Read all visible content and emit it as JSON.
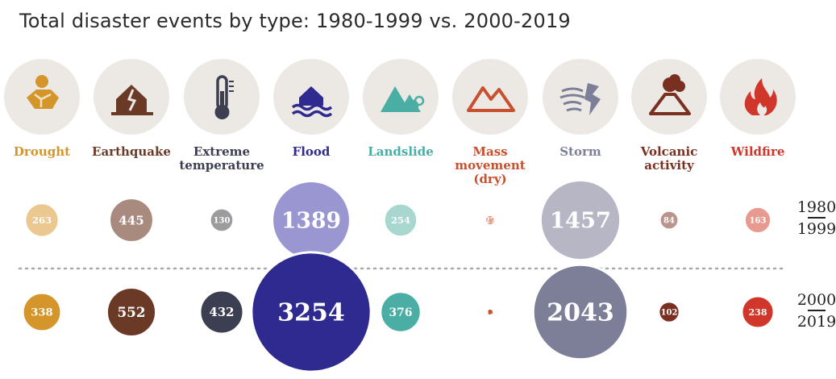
{
  "title": "Total disaster events by type: 1980-1999 vs. 2000-2019",
  "periods": {
    "p1": {
      "top": "1980",
      "bottom": "1999"
    },
    "p2": {
      "top": "2000",
      "bottom": "2019"
    }
  },
  "categories": [
    {
      "key": "drought",
      "label": [
        "Drought"
      ],
      "color": "#d4952a",
      "icon": "drought-icon"
    },
    {
      "key": "earthquake",
      "label": [
        "Earthquake"
      ],
      "color": "#6b3a26",
      "icon": "earthquake-icon"
    },
    {
      "key": "extreme",
      "label": [
        "Extreme",
        "temperature"
      ],
      "color": "#3c3f52",
      "icon": "thermometer-icon"
    },
    {
      "key": "flood",
      "label": [
        "Flood"
      ],
      "color": "#2e2a8f",
      "icon": "flood-icon"
    },
    {
      "key": "landslide",
      "label": [
        "Landslide"
      ],
      "color": "#4aaea5",
      "icon": "landslide-icon"
    },
    {
      "key": "mass",
      "label": [
        "Mass",
        "movement",
        "(dry)"
      ],
      "color": "#c8502f",
      "icon": "mass-movement-icon"
    },
    {
      "key": "storm",
      "label": [
        "Storm"
      ],
      "color": "#7d7f98",
      "icon": "storm-icon"
    },
    {
      "key": "volcanic",
      "label": [
        "Volcanic",
        "activity"
      ],
      "color": "#7a3020",
      "icon": "volcano-icon"
    },
    {
      "key": "wildfire",
      "label": [
        "Wildfire"
      ],
      "color": "#d0362a",
      "icon": "wildfire-icon"
    }
  ],
  "chart_data": {
    "type": "bubble",
    "title": "Total disaster events by type: 1980-1999 vs. 2000-2019",
    "categories": [
      "Drought",
      "Earthquake",
      "Extreme temperature",
      "Flood",
      "Landslide",
      "Mass movement (dry)",
      "Storm",
      "Volcanic activity",
      "Wildfire"
    ],
    "series": [
      {
        "name": "1980-1999",
        "values": [
          263,
          445,
          130,
          1389,
          254,
          27,
          1457,
          84,
          163
        ]
      },
      {
        "name": "2000-2019",
        "values": [
          338,
          552,
          432,
          3254,
          376,
          13,
          2043,
          102,
          238
        ]
      }
    ],
    "colors": {
      "1980-1999": [
        "#ebc88f",
        "#a88a7e",
        "#9c9c9e",
        "#9a96d2",
        "#a7d7cf",
        "#e6a28d",
        "#b6b6c4",
        "#b9958d",
        "#e99a90"
      ],
      "2000-2019": [
        "#d4952a",
        "#6b3a26",
        "#3c3f52",
        "#2e2a8f",
        "#4aaea5",
        "#c8502f",
        "#7d7f98",
        "#7a3020",
        "#d0362a"
      ]
    }
  }
}
